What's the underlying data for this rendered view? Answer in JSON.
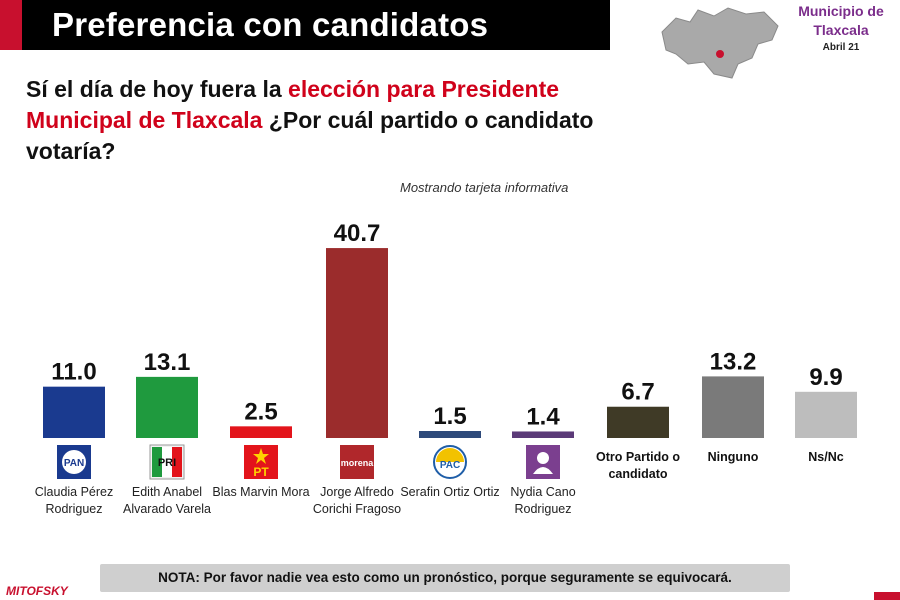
{
  "header": {
    "title": "Preferencia con candidatos",
    "municipality": "Municipio de Tlaxcala",
    "date": "Abril 21"
  },
  "question": {
    "part1": "Sí el día de hoy fuera la ",
    "part2": "elección para Presidente Municipal de Tlaxcala",
    "part3": " ¿Por cuál partido o candidato votaría?"
  },
  "subtitle": "Mostrando tarjeta informativa",
  "note": "NOTA: Por favor nadie vea esto como un pronóstico, porque seguramente se equivocará.",
  "brand": "MITOFSKY",
  "colors": {
    "title_bg": "#000000",
    "accent_red": "#d0021b",
    "muni_purple": "#7b2d8b",
    "map_gray": "#a9a9a9"
  },
  "chart_data": {
    "type": "bar",
    "categories": [
      "Claudia Pérez Rodriguez",
      "Edith Anabel Alvarado Varela",
      "Blas Marvin Mora",
      "Jorge Alfredo Corichi Fragoso",
      "Serafin Ortiz Ortiz",
      "Nydia Cano Rodriguez",
      "Otro Partido o candidato",
      "Ninguno",
      "Ns/Nc"
    ],
    "values": [
      11.0,
      13.1,
      2.5,
      40.7,
      1.5,
      1.4,
      6.7,
      13.2,
      9.9
    ],
    "value_labels": [
      "11.0",
      "13.1",
      "2.5",
      "40.7",
      "1.5",
      "1.4",
      "6.7",
      "13.2",
      "9.9"
    ],
    "bar_colors": [
      "#1a3a8f",
      "#1f9a3e",
      "#e3141b",
      "#9b2c2c",
      "#2e4a7a",
      "#5b3a78",
      "#3f3a26",
      "#7a7a7a",
      "#bdbdbd"
    ],
    "parties": [
      "PAN",
      "PRI",
      "PT",
      "morena",
      "PAC",
      "",
      "",
      "",
      ""
    ],
    "party_colors": [
      "#1a3a8f",
      "#1f9a3e",
      "#e3141b",
      "#b0272b",
      "#1f5ea8",
      "#7b3f8f",
      "",
      "",
      ""
    ],
    "ylim": [
      0,
      45
    ],
    "grid": false
  }
}
